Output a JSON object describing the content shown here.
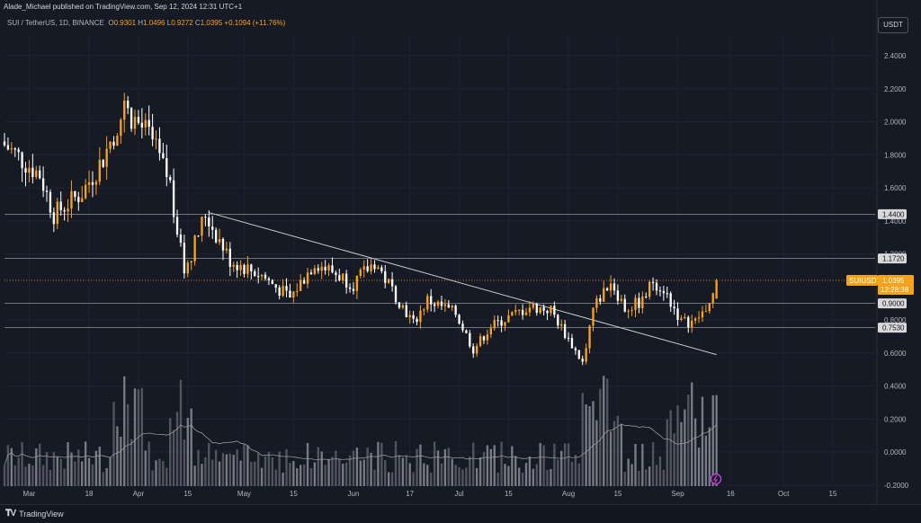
{
  "header": {
    "published": "Alade_Michael published on TradingView.com, Sep 12, 2024 12:31 UTC+1",
    "symbol": "SUI / TetherUS, 1D, BINANCE",
    "o_label": "O",
    "o_value": "0.9301",
    "h_label": "H",
    "h_value": "1.0496",
    "l_label": "L",
    "l_value": "0.9272",
    "c_label": "C",
    "c_value": "1.0395",
    "change": "+0.1094 (+11.76%)",
    "currency": "USDT"
  },
  "footer": {
    "brand": "TradingView"
  },
  "colors": {
    "up": "#f7a21b",
    "down": "#ffffff",
    "background": "#161a25",
    "grid": "#1f2330",
    "axis_text": "#b2b5be"
  },
  "chart_data": {
    "type": "candlestick",
    "symbol": "SUIUSDT",
    "timeframe": "1D",
    "y_ticks": [
      "2.4000",
      "2.2000",
      "2.0000",
      "1.8000",
      "1.6000",
      "1.4000",
      "1.2000",
      "0.8000",
      "0.6000",
      "0.4000",
      "0.2000",
      "0.0000",
      "-0.2000"
    ],
    "ylim": [
      -0.2,
      2.58
    ],
    "x_labels": [
      {
        "label": "Mar",
        "date": "2024-03-01"
      },
      {
        "label": "18",
        "date": "2024-03-18"
      },
      {
        "label": "Apr",
        "date": "2024-04-01"
      },
      {
        "label": "15",
        "date": "2024-04-15"
      },
      {
        "label": "May",
        "date": "2024-05-01"
      },
      {
        "label": "15",
        "date": "2024-05-15"
      },
      {
        "label": "Jun",
        "date": "2024-06-01"
      },
      {
        "label": "17",
        "date": "2024-06-17"
      },
      {
        "label": "Jul",
        "date": "2024-07-01"
      },
      {
        "label": "15",
        "date": "2024-07-15"
      },
      {
        "label": "Aug",
        "date": "2024-08-01"
      },
      {
        "label": "15",
        "date": "2024-08-15"
      },
      {
        "label": "Sep",
        "date": "2024-09-01"
      },
      {
        "label": "16",
        "date": "2024-09-16"
      },
      {
        "label": "Oct",
        "date": "2024-10-01"
      },
      {
        "label": "15",
        "date": "2024-10-15"
      }
    ],
    "x_range": [
      "2024-02-23",
      "2024-10-27"
    ],
    "horizontal_levels": [
      {
        "value": 1.44,
        "label": "1.4400"
      },
      {
        "value": 1.172,
        "label": "1.1720"
      },
      {
        "value": 0.9,
        "label": "0.9000"
      },
      {
        "value": 0.753,
        "label": "0.7530"
      }
    ],
    "current_price": {
      "value": 1.0395,
      "symbol_label": "SUIUSDT",
      "price_label": "1.0395",
      "countdown": "12:28:38"
    },
    "trendline": {
      "from": {
        "date": "2024-04-21",
        "value": 1.45
      },
      "to": {
        "date": "2024-09-12",
        "value": 0.59
      }
    },
    "price_keypoints": [
      {
        "date": "2024-02-23",
        "close": 1.86
      },
      {
        "date": "2024-03-04",
        "close": 1.68
      },
      {
        "date": "2024-03-08",
        "close": 1.44
      },
      {
        "date": "2024-03-16",
        "close": 1.57
      },
      {
        "date": "2024-03-22",
        "close": 1.78
      },
      {
        "date": "2024-03-28",
        "close": 2.08
      },
      {
        "date": "2024-04-04",
        "close": 1.92
      },
      {
        "date": "2024-04-10",
        "close": 1.62
      },
      {
        "date": "2024-04-14",
        "close": 1.09
      },
      {
        "date": "2024-04-20",
        "close": 1.44
      },
      {
        "date": "2024-04-27",
        "close": 1.16
      },
      {
        "date": "2024-05-06",
        "close": 1.07
      },
      {
        "date": "2024-05-14",
        "close": 0.93
      },
      {
        "date": "2024-05-21",
        "close": 1.15
      },
      {
        "date": "2024-06-01",
        "close": 1.02
      },
      {
        "date": "2024-06-07",
        "close": 1.15
      },
      {
        "date": "2024-06-18",
        "close": 0.78
      },
      {
        "date": "2024-06-22",
        "close": 0.92
      },
      {
        "date": "2024-06-30",
        "close": 0.84
      },
      {
        "date": "2024-07-05",
        "close": 0.62
      },
      {
        "date": "2024-07-10",
        "close": 0.76
      },
      {
        "date": "2024-07-21",
        "close": 0.88
      },
      {
        "date": "2024-07-27",
        "close": 0.86
      },
      {
        "date": "2024-08-05",
        "close": 0.54
      },
      {
        "date": "2024-08-08",
        "close": 0.87
      },
      {
        "date": "2024-08-13",
        "close": 1.04
      },
      {
        "date": "2024-08-17",
        "close": 0.87
      },
      {
        "date": "2024-08-22",
        "close": 0.91
      },
      {
        "date": "2024-08-25",
        "close": 1.04
      },
      {
        "date": "2024-08-28",
        "close": 0.99
      },
      {
        "date": "2024-09-02",
        "close": 0.79
      },
      {
        "date": "2024-09-06",
        "close": 0.79
      },
      {
        "date": "2024-09-11",
        "close": 0.93
      },
      {
        "date": "2024-09-12",
        "close": 1.0395
      }
    ],
    "volume_bars": "grey volume histogram along bottom with moving-average line; spikes around Mar 28, Apr 13, Aug 5-14, Sep 1-11"
  }
}
